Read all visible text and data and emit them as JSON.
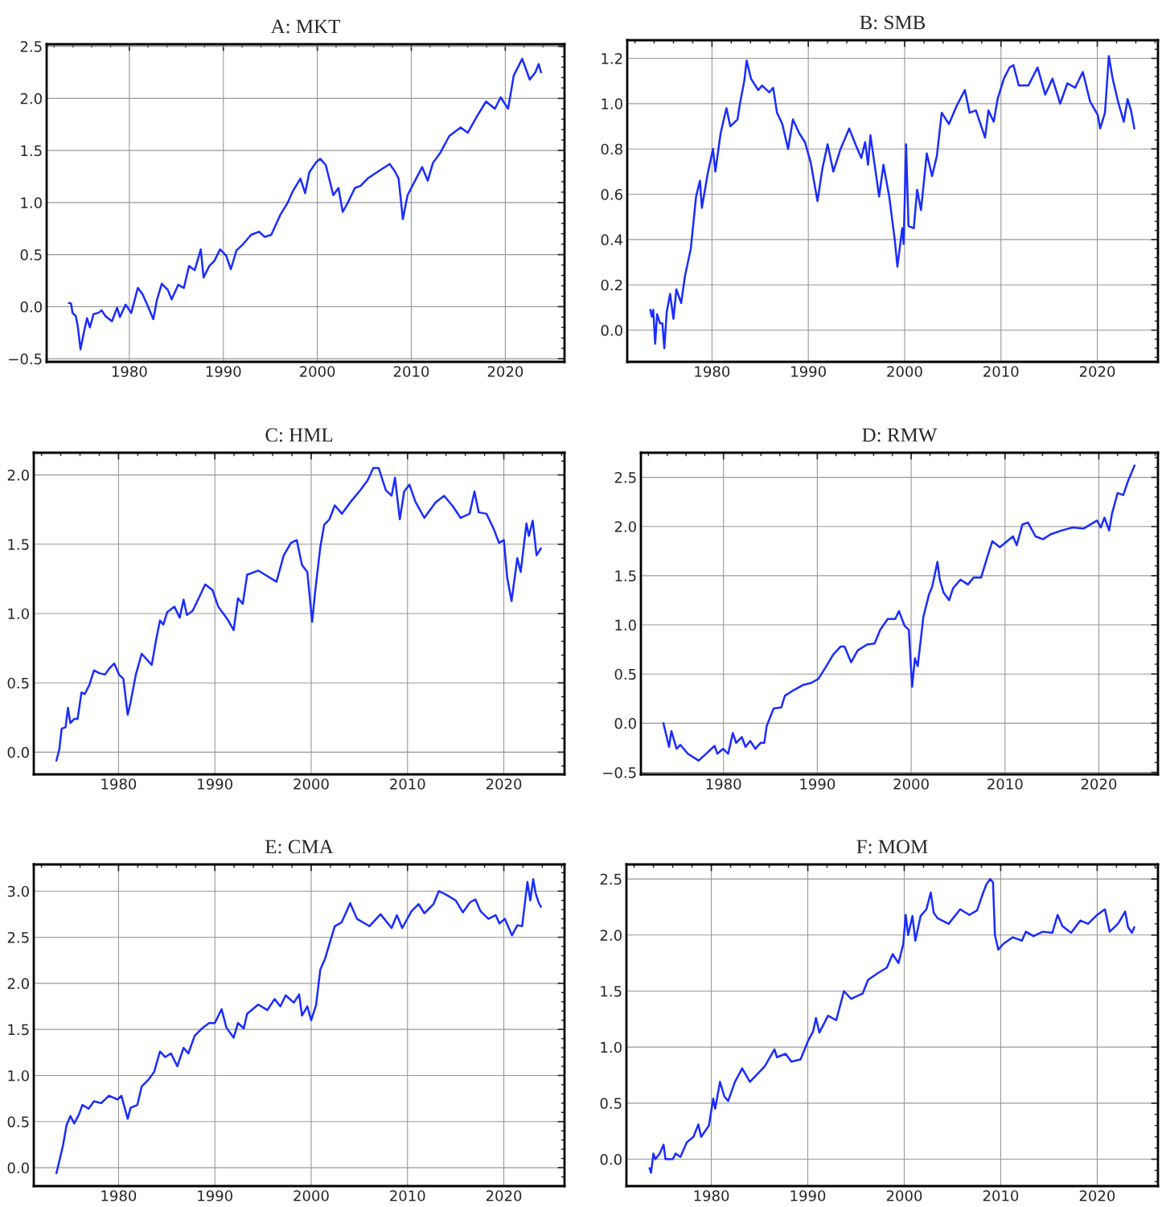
{
  "chart_data": [
    {
      "type": "line",
      "title": "A: MKT",
      "color": "#1a2cff",
      "grid": true,
      "xlim": [
        1971.2,
        2026.3
      ],
      "ylim": [
        -0.53,
        2.52
      ],
      "xticks": [
        1980,
        1990,
        2000,
        2010,
        2020
      ],
      "yticks": [
        {
          "value": -0.5,
          "label": "−0.5"
        },
        {
          "value": 0,
          "label": "0.0"
        },
        {
          "value": 0.5,
          "label": "0.5"
        },
        {
          "value": 1,
          "label": "1.0"
        },
        {
          "value": 1.5,
          "label": "1.5"
        },
        {
          "value": 2,
          "label": "2.0"
        },
        {
          "value": 2.5,
          "label": "2.5"
        }
      ],
      "x": [
        1973.57,
        1973.8,
        1973.95,
        1974.3,
        1974.5,
        1974.8,
        1975.0,
        1975.2,
        1975.5,
        1975.8,
        1976.2,
        1976.7,
        1977.05,
        1977.45,
        1978.15,
        1978.7,
        1979.0,
        1979.6,
        1980.2,
        1980.9,
        1981.4,
        1981.9,
        1982.55,
        1982.95,
        1983.45,
        1984.1,
        1984.5,
        1985.2,
        1985.8,
        1986.35,
        1986.95,
        1987.6,
        1987.9,
        1988.5,
        1989.05,
        1989.65,
        1990.3,
        1990.8,
        1991.4,
        1992.0,
        1992.95,
        1993.8,
        1994.4,
        1995.1,
        1996.05,
        1996.8,
        1997.4,
        1998.2,
        1998.7,
        1999.15,
        1999.9,
        2000.3,
        2000.9,
        2001.7,
        2002.25,
        2002.7,
        2003.2,
        2004.0,
        2004.6,
        2005.35,
        2006.5,
        2007.7,
        2008.25,
        2008.65,
        2009.1,
        2009.6,
        2010.4,
        2011.15,
        2011.75,
        2012.3,
        2013.1,
        2014.05,
        2015.25,
        2016.0,
        2017.0,
        2017.95,
        2018.9,
        2019.5,
        2020.3,
        2020.9,
        2021.8,
        2022.6,
        2023.2,
        2023.55,
        2023.8
      ],
      "values": [
        0.035,
        0.03,
        -0.06,
        -0.09,
        -0.18,
        -0.41,
        -0.32,
        -0.23,
        -0.11,
        -0.2,
        -0.07,
        -0.06,
        -0.035,
        -0.09,
        -0.14,
        -0.01,
        -0.1,
        0.02,
        -0.06,
        0.18,
        0.12,
        0.02,
        -0.12,
        0.07,
        0.22,
        0.16,
        0.07,
        0.21,
        0.18,
        0.39,
        0.35,
        0.55,
        0.28,
        0.39,
        0.44,
        0.55,
        0.49,
        0.36,
        0.54,
        0.59,
        0.69,
        0.72,
        0.67,
        0.69,
        0.88,
        0.99,
        1.11,
        1.23,
        1.09,
        1.29,
        1.39,
        1.42,
        1.36,
        1.07,
        1.14,
        0.91,
        0.99,
        1.14,
        1.16,
        1.23,
        1.3,
        1.37,
        1.3,
        1.23,
        0.84,
        1.07,
        1.21,
        1.34,
        1.21,
        1.38,
        1.48,
        1.64,
        1.72,
        1.67,
        1.83,
        1.97,
        1.9,
        2.01,
        1.9,
        2.22,
        2.38,
        2.18,
        2.25,
        2.33,
        2.25
      ]
    },
    {
      "type": "line",
      "title": "B: SMB",
      "color": "#1a2cff",
      "grid": true,
      "xlim": [
        1971.2,
        2026.3
      ],
      "ylim": [
        -0.14,
        1.28
      ],
      "xticks": [
        1980,
        1990,
        2000,
        2010,
        2020
      ],
      "yticks": [
        {
          "value": 0,
          "label": "0.0"
        },
        {
          "value": 0.2,
          "label": "0.2"
        },
        {
          "value": 0.4,
          "label": "0.4"
        },
        {
          "value": 0.6,
          "label": "0.6"
        },
        {
          "value": 0.8,
          "label": "0.8"
        },
        {
          "value": 1,
          "label": "1.0"
        },
        {
          "value": 1.2,
          "label": "1.2"
        }
      ],
      "x": [
        1973.6,
        1973.75,
        1973.9,
        1974.1,
        1974.3,
        1974.6,
        1974.85,
        1975.05,
        1975.3,
        1975.65,
        1976.0,
        1976.3,
        1976.8,
        1977.2,
        1977.8,
        1978.35,
        1978.75,
        1978.95,
        1979.55,
        1980.1,
        1980.35,
        1980.9,
        1981.5,
        1981.9,
        1982.65,
        1982.9,
        1983.35,
        1983.6,
        1984.05,
        1984.8,
        1985.2,
        1985.95,
        1986.35,
        1986.75,
        1987.3,
        1987.9,
        1988.4,
        1989.05,
        1989.65,
        1990.25,
        1990.95,
        1991.45,
        1992.0,
        1992.6,
        1993.35,
        1994.25,
        1994.9,
        1995.5,
        1995.9,
        1996.2,
        1996.45,
        1997.05,
        1997.35,
        1997.8,
        1998.4,
        1999.0,
        1999.25,
        1999.75,
        1999.9,
        2000.15,
        2000.4,
        2000.95,
        2001.3,
        2001.7,
        2002.3,
        2002.85,
        2003.35,
        2003.85,
        2004.6,
        2005.4,
        2006.25,
        2006.75,
        2007.4,
        2008.35,
        2008.7,
        2009.25,
        2009.65,
        2010.3,
        2010.9,
        2011.3,
        2011.85,
        2012.85,
        2013.8,
        2014.6,
        2015.35,
        2016.15,
        2016.9,
        2017.7,
        2018.5,
        2019.25,
        2020.05,
        2020.3,
        2020.8,
        2021.2,
        2021.6,
        2022.15,
        2022.75,
        2023.15,
        2023.5,
        2023.85
      ],
      "values": [
        0.09,
        0.06,
        0.09,
        -0.06,
        0.07,
        0.03,
        0.03,
        -0.08,
        0.08,
        0.16,
        0.05,
        0.18,
        0.12,
        0.24,
        0.36,
        0.59,
        0.66,
        0.54,
        0.69,
        0.8,
        0.7,
        0.87,
        0.98,
        0.9,
        0.93,
        1.0,
        1.1,
        1.19,
        1.11,
        1.06,
        1.08,
        1.05,
        1.07,
        0.96,
        0.91,
        0.8,
        0.93,
        0.87,
        0.83,
        0.74,
        0.57,
        0.71,
        0.82,
        0.7,
        0.8,
        0.89,
        0.82,
        0.76,
        0.83,
        0.73,
        0.86,
        0.68,
        0.59,
        0.73,
        0.59,
        0.39,
        0.28,
        0.45,
        0.38,
        0.82,
        0.46,
        0.45,
        0.62,
        0.53,
        0.78,
        0.68,
        0.77,
        0.96,
        0.91,
        0.99,
        1.06,
        0.96,
        0.97,
        0.85,
        0.97,
        0.92,
        1.02,
        1.11,
        1.16,
        1.17,
        1.08,
        1.08,
        1.16,
        1.04,
        1.11,
        1.0,
        1.09,
        1.07,
        1.14,
        1.01,
        0.95,
        0.89,
        0.96,
        1.21,
        1.11,
        1.01,
        0.92,
        1.02,
        0.97,
        0.89
      ]
    },
    {
      "type": "line",
      "title": "C: HML",
      "color": "#1a2cff",
      "grid": true,
      "xlim": [
        1971.2,
        2026.3
      ],
      "ylim": [
        -0.16,
        2.16
      ],
      "xticks": [
        1980,
        1990,
        2000,
        2010,
        2020
      ],
      "yticks": [
        {
          "value": 0,
          "label": "0.0"
        },
        {
          "value": 0.5,
          "label": "0.5"
        },
        {
          "value": 1,
          "label": "1.0"
        },
        {
          "value": 1.5,
          "label": "1.5"
        },
        {
          "value": 2,
          "label": "2.0"
        }
      ],
      "x": [
        1973.55,
        1973.85,
        1974.1,
        1974.5,
        1974.75,
        1975.0,
        1975.4,
        1975.75,
        1976.15,
        1976.5,
        1977.0,
        1977.45,
        1978.0,
        1978.6,
        1979.0,
        1979.55,
        1980.05,
        1980.5,
        1980.95,
        1981.25,
        1981.8,
        1982.4,
        1983.45,
        1983.9,
        1984.3,
        1984.65,
        1985.05,
        1985.8,
        1986.35,
        1986.75,
        1987.1,
        1987.7,
        1988.25,
        1989.0,
        1989.75,
        1990.35,
        1991.3,
        1991.95,
        1992.4,
        1992.9,
        1993.35,
        1994.5,
        1995.45,
        1996.4,
        1997.15,
        1997.9,
        1998.5,
        1999.05,
        1999.6,
        2000.1,
        2000.4,
        2000.95,
        2001.35,
        2001.9,
        2002.45,
        2003.2,
        2004.15,
        2005.1,
        2005.85,
        2006.45,
        2007.0,
        2007.75,
        2008.35,
        2008.7,
        2009.2,
        2009.65,
        2010.2,
        2010.8,
        2011.75,
        2012.9,
        2013.8,
        2014.75,
        2015.5,
        2016.45,
        2016.95,
        2017.4,
        2018.2,
        2018.95,
        2019.5,
        2020.0,
        2020.35,
        2020.8,
        2021.4,
        2021.75,
        2022.35,
        2022.6,
        2023.0,
        2023.4,
        2023.85
      ],
      "values": [
        -0.06,
        0.02,
        0.17,
        0.18,
        0.32,
        0.21,
        0.24,
        0.24,
        0.43,
        0.42,
        0.49,
        0.59,
        0.57,
        0.56,
        0.6,
        0.64,
        0.56,
        0.53,
        0.27,
        0.36,
        0.56,
        0.71,
        0.63,
        0.81,
        0.95,
        0.92,
        1.01,
        1.05,
        0.97,
        1.1,
        0.99,
        1.02,
        1.1,
        1.21,
        1.17,
        1.05,
        0.96,
        0.88,
        1.11,
        1.07,
        1.28,
        1.31,
        1.27,
        1.23,
        1.42,
        1.51,
        1.53,
        1.35,
        1.3,
        0.94,
        1.15,
        1.48,
        1.64,
        1.68,
        1.78,
        1.72,
        1.81,
        1.89,
        1.96,
        2.05,
        2.05,
        1.89,
        1.85,
        1.98,
        1.68,
        1.88,
        1.93,
        1.81,
        1.69,
        1.8,
        1.85,
        1.77,
        1.69,
        1.72,
        1.88,
        1.73,
        1.72,
        1.61,
        1.51,
        1.53,
        1.26,
        1.09,
        1.4,
        1.3,
        1.65,
        1.56,
        1.67,
        1.42,
        1.47
      ]
    },
    {
      "type": "line",
      "title": "D: RMW",
      "color": "#1a2cff",
      "grid": true,
      "xlim": [
        1971.2,
        2026.3
      ],
      "ylim": [
        -0.52,
        2.75
      ],
      "xticks": [
        1980,
        1990,
        2000,
        2010,
        2020
      ],
      "yticks": [
        {
          "value": -0.5,
          "label": "−0.5"
        },
        {
          "value": 0,
          "label": "0.0"
        },
        {
          "value": 0.5,
          "label": "0.5"
        },
        {
          "value": 1,
          "label": "1.0"
        },
        {
          "value": 1.5,
          "label": "1.5"
        },
        {
          "value": 2,
          "label": "2.0"
        },
        {
          "value": 2.5,
          "label": "2.5"
        }
      ],
      "x": [
        1973.6,
        1974.2,
        1974.45,
        1975.0,
        1975.4,
        1976.2,
        1977.35,
        1978.15,
        1979.05,
        1979.35,
        1979.95,
        1980.5,
        1981.0,
        1981.35,
        1981.95,
        1982.35,
        1982.85,
        1983.4,
        1983.95,
        1984.35,
        1984.6,
        1985.35,
        1986.15,
        1986.55,
        1987.55,
        1988.5,
        1989.35,
        1990.1,
        1990.9,
        1991.7,
        1992.5,
        1992.9,
        1993.6,
        1994.3,
        1995.3,
        1996.1,
        1996.7,
        1997.5,
        1998.3,
        1998.7,
        1999.3,
        1999.75,
        2000.1,
        2000.4,
        2000.7,
        2001.3,
        2001.9,
        2002.25,
        2002.8,
        2003.05,
        2003.45,
        2004.05,
        2004.45,
        2005.25,
        2006.05,
        2006.65,
        2007.45,
        2008.05,
        2008.65,
        2009.45,
        2010.85,
        2011.25,
        2011.85,
        2012.45,
        2013.25,
        2014.05,
        2014.85,
        2016.05,
        2017.2,
        2018.4,
        2019.8,
        2020.2,
        2020.6,
        2021.1,
        2021.4,
        2022.0,
        2022.6,
        2023.1,
        2023.8
      ],
      "values": [
        0.0,
        -0.24,
        -0.08,
        -0.26,
        -0.22,
        -0.31,
        -0.38,
        -0.31,
        -0.23,
        -0.31,
        -0.26,
        -0.31,
        -0.1,
        -0.2,
        -0.14,
        -0.24,
        -0.18,
        -0.26,
        -0.2,
        -0.2,
        -0.03,
        0.15,
        0.16,
        0.28,
        0.34,
        0.39,
        0.41,
        0.45,
        0.57,
        0.7,
        0.78,
        0.78,
        0.62,
        0.74,
        0.8,
        0.81,
        0.95,
        1.06,
        1.06,
        1.14,
        0.99,
        0.95,
        0.37,
        0.66,
        0.58,
        1.08,
        1.31,
        1.39,
        1.64,
        1.46,
        1.33,
        1.25,
        1.37,
        1.46,
        1.41,
        1.48,
        1.48,
        1.67,
        1.85,
        1.79,
        1.9,
        1.81,
        2.02,
        2.04,
        1.9,
        1.87,
        1.92,
        1.96,
        1.99,
        1.98,
        2.06,
        1.99,
        2.09,
        1.96,
        2.13,
        2.34,
        2.32,
        2.46,
        2.62
      ]
    },
    {
      "type": "line",
      "title": "E: CMA",
      "color": "#1a2cff",
      "grid": true,
      "xlim": [
        1971.2,
        2026.3
      ],
      "ylim": [
        -0.2,
        3.29
      ],
      "xticks": [
        1980,
        1990,
        2000,
        2010,
        2020
      ],
      "yticks": [
        {
          "value": 0,
          "label": "0.0"
        },
        {
          "value": 0.5,
          "label": "0.5"
        },
        {
          "value": 1,
          "label": "1.0"
        },
        {
          "value": 1.5,
          "label": "1.5"
        },
        {
          "value": 2,
          "label": "2.0"
        },
        {
          "value": 2.5,
          "label": "2.5"
        },
        {
          "value": 3,
          "label": "3.0"
        }
      ],
      "x": [
        1973.55,
        1973.85,
        1974.25,
        1974.6,
        1975.0,
        1975.4,
        1975.9,
        1976.25,
        1976.9,
        1977.45,
        1978.2,
        1979.0,
        1979.9,
        1980.3,
        1980.95,
        1981.25,
        1981.95,
        1982.4,
        1983.15,
        1983.7,
        1984.3,
        1984.85,
        1985.45,
        1986.1,
        1986.75,
        1987.25,
        1987.9,
        1988.65,
        1989.4,
        1990.0,
        1990.7,
        1991.2,
        1991.95,
        1992.4,
        1993.0,
        1993.35,
        1994.5,
        1995.45,
        1996.2,
        1996.8,
        1997.35,
        1998.2,
        1998.75,
        1999.05,
        1999.6,
        2000.0,
        2000.5,
        2000.95,
        2001.45,
        2001.9,
        2002.45,
        2003.15,
        2004.05,
        2004.75,
        2006.05,
        2007.2,
        2008.35,
        2008.9,
        2009.45,
        2010.4,
        2011.15,
        2011.75,
        2012.7,
        2013.25,
        2014.05,
        2015.0,
        2015.75,
        2016.5,
        2017.05,
        2017.6,
        2018.4,
        2019.15,
        2019.55,
        2020.1,
        2020.85,
        2021.4,
        2021.9,
        2022.45,
        2022.75,
        2023.05,
        2023.3,
        2023.6,
        2023.85
      ],
      "values": [
        -0.06,
        0.07,
        0.25,
        0.46,
        0.56,
        0.48,
        0.58,
        0.68,
        0.64,
        0.72,
        0.7,
        0.78,
        0.74,
        0.78,
        0.53,
        0.65,
        0.68,
        0.88,
        0.96,
        1.04,
        1.26,
        1.2,
        1.24,
        1.1,
        1.3,
        1.24,
        1.43,
        1.51,
        1.57,
        1.57,
        1.72,
        1.52,
        1.41,
        1.57,
        1.51,
        1.67,
        1.77,
        1.71,
        1.83,
        1.75,
        1.87,
        1.79,
        1.88,
        1.65,
        1.75,
        1.6,
        1.76,
        2.15,
        2.27,
        2.43,
        2.62,
        2.66,
        2.87,
        2.7,
        2.62,
        2.75,
        2.6,
        2.74,
        2.6,
        2.78,
        2.86,
        2.76,
        2.86,
        3.0,
        2.96,
        2.9,
        2.77,
        2.88,
        2.91,
        2.78,
        2.7,
        2.74,
        2.65,
        2.7,
        2.52,
        2.63,
        2.62,
        3.1,
        2.9,
        3.13,
        2.98,
        2.88,
        2.83
      ]
    },
    {
      "type": "line",
      "title": "F: MOM",
      "color": "#1a2cff",
      "grid": true,
      "xlim": [
        1971.2,
        2026.3
      ],
      "ylim": [
        -0.24,
        2.63
      ],
      "xticks": [
        1980,
        1990,
        2000,
        2010,
        2020
      ],
      "yticks": [
        {
          "value": 0,
          "label": "0.0"
        },
        {
          "value": 0.5,
          "label": "0.5"
        },
        {
          "value": 1,
          "label": "1.0"
        },
        {
          "value": 1.5,
          "label": "1.5"
        },
        {
          "value": 2,
          "label": "2.0"
        },
        {
          "value": 2.5,
          "label": "2.5"
        }
      ],
      "x": [
        1973.6,
        1973.75,
        1974.0,
        1974.2,
        1974.65,
        1975.05,
        1975.25,
        1976.0,
        1976.3,
        1976.8,
        1977.45,
        1978.15,
        1978.65,
        1978.95,
        1979.75,
        1980.2,
        1980.4,
        1980.9,
        1981.35,
        1981.75,
        1982.45,
        1983.2,
        1984.0,
        1985.0,
        1985.55,
        1986.55,
        1986.8,
        1987.7,
        1988.3,
        1989.25,
        1990.05,
        1990.55,
        1990.85,
        1991.2,
        1992.1,
        1992.95,
        1993.75,
        1994.5,
        1995.7,
        1996.25,
        1997.25,
        1998.2,
        1998.8,
        1999.4,
        1999.9,
        2000.15,
        2000.4,
        2000.85,
        2001.15,
        2001.7,
        2002.3,
        2002.75,
        2003.05,
        2003.45,
        2004.6,
        2005.8,
        2006.75,
        2007.55,
        2008.15,
        2008.5,
        2008.9,
        2009.2,
        2009.4,
        2009.75,
        2010.25,
        2011.25,
        2012.2,
        2012.6,
        2013.4,
        2014.35,
        2015.35,
        2015.9,
        2016.4,
        2017.3,
        2018.25,
        2019.05,
        2020.0,
        2020.8,
        2021.3,
        2022.15,
        2022.9,
        2023.2,
        2023.6,
        2023.85
      ],
      "values": [
        -0.08,
        -0.12,
        0.05,
        0.0,
        0.05,
        0.13,
        0.0,
        0.0,
        0.05,
        0.02,
        0.15,
        0.2,
        0.31,
        0.2,
        0.3,
        0.54,
        0.45,
        0.69,
        0.56,
        0.52,
        0.69,
        0.81,
        0.69,
        0.78,
        0.83,
        0.98,
        0.91,
        0.94,
        0.87,
        0.89,
        1.06,
        1.14,
        1.26,
        1.13,
        1.28,
        1.24,
        1.5,
        1.43,
        1.48,
        1.6,
        1.66,
        1.71,
        1.83,
        1.75,
        1.92,
        2.18,
        2.0,
        2.17,
        1.95,
        2.17,
        2.23,
        2.38,
        2.2,
        2.15,
        2.1,
        2.23,
        2.18,
        2.22,
        2.37,
        2.45,
        2.5,
        2.47,
        2.0,
        1.87,
        1.92,
        1.98,
        1.95,
        2.03,
        1.99,
        2.03,
        2.02,
        2.18,
        2.08,
        2.02,
        2.13,
        2.1,
        2.18,
        2.23,
        2.03,
        2.1,
        2.21,
        2.07,
        2.02,
        2.07
      ]
    }
  ]
}
